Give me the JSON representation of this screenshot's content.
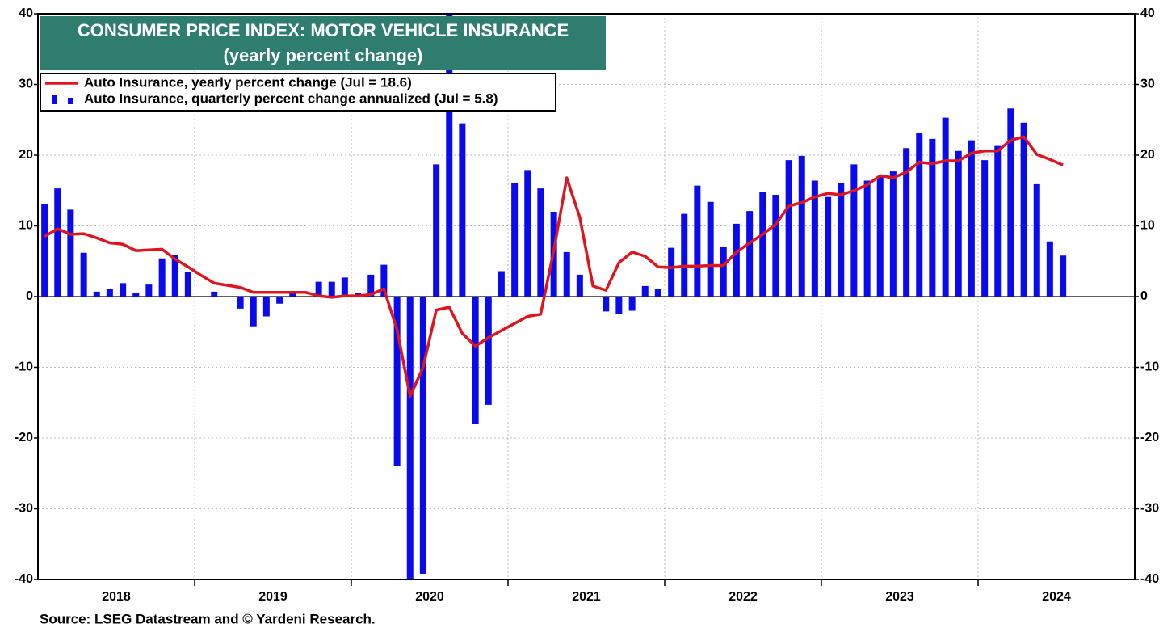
{
  "chart_data": {
    "type": "bar_line",
    "title": "CONSUMER PRICE INDEX: MOTOR VEHICLE INSURANCE",
    "subtitle": "(yearly percent change)",
    "source": "Source: LSEG Datastream and © Yardeni Research.",
    "x": [
      2018.042,
      2018.125,
      2018.208,
      2018.292,
      2018.375,
      2018.458,
      2018.542,
      2018.625,
      2018.708,
      2018.792,
      2018.875,
      2018.958,
      2019.042,
      2019.125,
      2019.208,
      2019.292,
      2019.375,
      2019.458,
      2019.542,
      2019.625,
      2019.708,
      2019.792,
      2019.875,
      2019.958,
      2020.042,
      2020.125,
      2020.208,
      2020.292,
      2020.375,
      2020.458,
      2020.542,
      2020.625,
      2020.708,
      2020.792,
      2020.875,
      2020.958,
      2021.042,
      2021.125,
      2021.208,
      2021.292,
      2021.375,
      2021.458,
      2021.542,
      2021.625,
      2021.708,
      2021.792,
      2021.875,
      2021.958,
      2022.042,
      2022.125,
      2022.208,
      2022.292,
      2022.375,
      2022.458,
      2022.542,
      2022.625,
      2022.708,
      2022.792,
      2022.875,
      2022.958,
      2023.042,
      2023.125,
      2023.208,
      2023.292,
      2023.375,
      2023.458,
      2023.542,
      2023.625,
      2023.708,
      2023.792,
      2023.875,
      2023.958,
      2024.042,
      2024.125,
      2024.208,
      2024.292,
      2024.375,
      2024.458,
      2024.542
    ],
    "series": [
      {
        "name": "Auto Insurance, yearly percent change (Jul = 18.6)",
        "type": "line",
        "color": "#e0141e",
        "values": [
          8.5,
          9.6,
          8.8,
          8.9,
          8.3,
          7.6,
          7.4,
          6.5,
          6.6,
          6.7,
          5.3,
          4.2,
          3.0,
          1.9,
          1.6,
          1.3,
          0.6,
          0.6,
          0.6,
          0.6,
          0.6,
          0.1,
          -0.1,
          0.1,
          0.1,
          0.3,
          1.1,
          -4.7,
          -14.1,
          -10.0,
          -1.9,
          -1.5,
          -5.2,
          -7.0,
          -5.8,
          -4.8,
          -3.8,
          -2.8,
          -2.5,
          6.5,
          16.8,
          11.2,
          1.5,
          0.9,
          4.8,
          6.3,
          5.7,
          4.2,
          4.1,
          4.3,
          4.3,
          4.4,
          4.4,
          6.3,
          7.6,
          8.8,
          10.2,
          12.8,
          13.3,
          14.1,
          14.6,
          14.4,
          15.0,
          15.8,
          17.1,
          16.8,
          17.6,
          19.0,
          18.8,
          19.2,
          19.2,
          20.3,
          20.6,
          20.6,
          22.1,
          22.6,
          20.1,
          19.4,
          18.6
        ]
      },
      {
        "name": "Auto Insurance, quarterly percent change annualized (Jul = 5.8)",
        "type": "bar",
        "color": "#0a0aee",
        "values": [
          13.1,
          15.3,
          12.3,
          6.2,
          0.7,
          1.1,
          1.9,
          0.5,
          1.7,
          5.4,
          5.9,
          3.5,
          -0.1,
          0.7,
          0,
          -1.7,
          -4.2,
          -2.8,
          -1.0,
          0.4,
          0,
          2.1,
          2.1,
          2.7,
          0.5,
          3.1,
          4.5,
          -24.0,
          -40,
          -39.2,
          18.7,
          40,
          24.5,
          -18.0,
          -15.3,
          3.6,
          16.1,
          17.9,
          15.3,
          12.0,
          6.3,
          3.1,
          0,
          -2.1,
          -2.4,
          -2.0,
          1.5,
          1.1,
          6.9,
          11.7,
          15.7,
          13.4,
          7.0,
          10.3,
          12.1,
          14.8,
          14.4,
          19.3,
          19.9,
          16.4,
          14.1,
          16.0,
          18.7,
          16.4,
          17.0,
          17.7,
          21.0,
          23.1,
          22.3,
          25.3,
          20.6,
          22.1,
          19.3,
          21.3,
          26.6,
          24.6,
          15.9,
          7.8,
          5.8
        ]
      }
    ],
    "xlim": [
      2018,
      2025
    ],
    "xticks": [
      {
        "value": 2018.5,
        "label": "2018"
      },
      {
        "value": 2019.5,
        "label": "2019"
      },
      {
        "value": 2020.5,
        "label": "2020"
      },
      {
        "value": 2021.5,
        "label": "2021"
      },
      {
        "value": 2022.5,
        "label": "2022"
      },
      {
        "value": 2023.5,
        "label": "2023"
      },
      {
        "value": 2024.5,
        "label": "2024"
      }
    ],
    "xgrid": [
      2019,
      2020,
      2021,
      2022,
      2023,
      2024
    ],
    "ylim": [
      -40,
      40
    ],
    "yticks": [
      -40,
      -30,
      -20,
      -10,
      0,
      10,
      20,
      30,
      40
    ],
    "y2lim": [
      -40,
      40
    ],
    "y2ticks": [
      -40,
      -30,
      -20,
      -10,
      0,
      10,
      20,
      30,
      40
    ],
    "grid": true
  }
}
